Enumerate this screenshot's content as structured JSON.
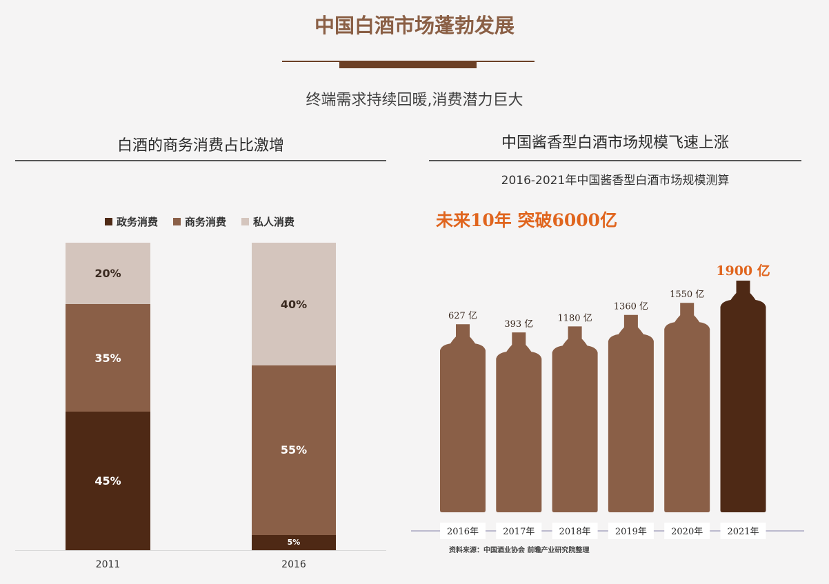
{
  "header": {
    "title": "中国白酒市场蓬勃发展",
    "subtitle": "终端需求持续回暖,消费潜力巨大"
  },
  "left_panel": {
    "title": "白酒的商务消费占比激增"
  },
  "right_panel": {
    "title": "中国酱香型白酒市场规模飞速上涨",
    "subtitle": "2016-2021年中国酱香型白酒市场规模测算",
    "callout": "未来10年 突破6000亿",
    "source": "资料来源：中国酒业协会 前瞻产业研究院整理"
  },
  "colors": {
    "government": "#4e2915",
    "business": "#8a5f47",
    "private": "#d4c5bd",
    "bottle": "#8a5f47",
    "bottle_highlight": "#4e2915",
    "callout": "#e0651e"
  },
  "chart_data": [
    {
      "type": "bar",
      "stacked": true,
      "title": "白酒的商务消费占比激增",
      "categories": [
        "2011",
        "2016"
      ],
      "series": [
        {
          "name": "政务消费",
          "values": [
            45,
            5
          ],
          "labels": [
            "45%",
            "5%"
          ]
        },
        {
          "name": "商务消费",
          "values": [
            35,
            55
          ],
          "labels": [
            "35%",
            "55%"
          ]
        },
        {
          "name": "私人消费",
          "values": [
            20,
            40
          ],
          "labels": [
            "20%",
            "40%"
          ]
        }
      ],
      "ylim": [
        0,
        100
      ],
      "legend": "top"
    },
    {
      "type": "bar",
      "title": "中国酱香型白酒市场规模飞速上涨",
      "categories": [
        "2016年",
        "2017年",
        "2018年",
        "2019年",
        "2020年",
        "2021年"
      ],
      "values": [
        627,
        393,
        1180,
        1360,
        1550,
        1900
      ],
      "labels": [
        "627 亿",
        "393 亿",
        "1180 亿",
        "1360 亿",
        "1550 亿",
        "1900 亿"
      ],
      "highlight_index": 5
    }
  ]
}
